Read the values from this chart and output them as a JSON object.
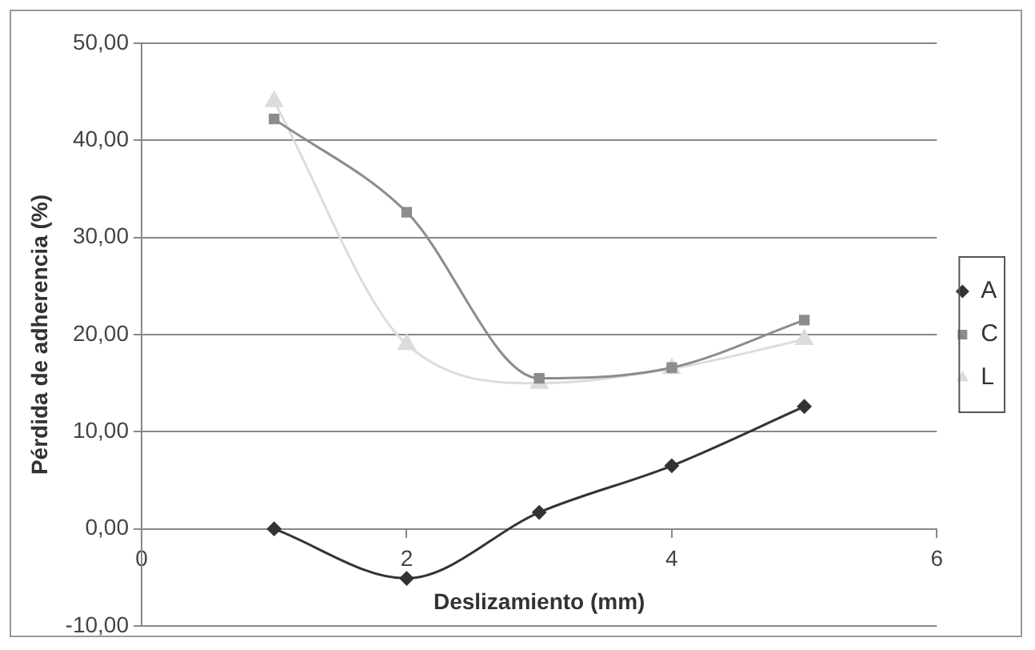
{
  "chart_data": {
    "type": "line",
    "xlabel": "Deslizamiento (mm)",
    "ylabel": "Pérdida de adherencia (%)",
    "x": [
      1,
      2,
      3,
      4,
      5
    ],
    "series": [
      {
        "name": "A",
        "color": "#333333",
        "marker": "diamond",
        "values": [
          0,
          -5.1,
          1.7,
          6.5,
          12.6
        ]
      },
      {
        "name": "C",
        "color": "#8c8c8c",
        "marker": "square",
        "values": [
          42.2,
          32.6,
          15.5,
          16.6,
          21.5
        ]
      },
      {
        "name": "L",
        "color": "#dcdcdc",
        "marker": "triangle",
        "values": [
          44,
          19,
          15,
          16.5,
          19.5
        ]
      }
    ],
    "xlim": [
      0,
      6
    ],
    "xticks": [
      0,
      2,
      4,
      6
    ],
    "ylim": [
      -10,
      50
    ],
    "yticks": [
      {
        "value": -10,
        "label": "-10,00"
      },
      {
        "value": 0,
        "label": "0,00"
      },
      {
        "value": 10,
        "label": "10,00"
      },
      {
        "value": 20,
        "label": "20,00"
      },
      {
        "value": 30,
        "label": "30,00"
      },
      {
        "value": 40,
        "label": "40,00"
      },
      {
        "value": 50,
        "label": "50,00"
      }
    ],
    "grid": "y",
    "legend": "right"
  }
}
